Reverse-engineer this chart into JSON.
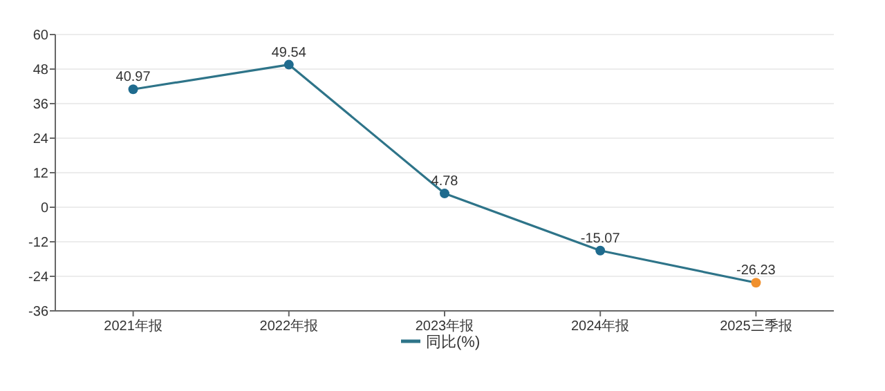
{
  "chart_data": {
    "type": "line",
    "categories": [
      "2021年报",
      "2022年报",
      "2023年报",
      "2024年报",
      "2025三季报"
    ],
    "series": [
      {
        "name": "同比(%)",
        "color": "#2e7489",
        "colors": [
          "#1f6b8e",
          "#1f6b8e",
          "#1f6b8e",
          "#1f6b8e",
          "#f0902e"
        ],
        "values": [
          40.97,
          49.54,
          4.78,
          -15.07,
          -26.23
        ]
      }
    ],
    "ylim": [
      -36,
      60
    ],
    "yticks": [
      -36,
      -24,
      -12,
      0,
      12,
      24,
      36,
      48,
      60
    ],
    "grid": "y",
    "legend": "bottom",
    "marker": "circle",
    "line_style": "solid",
    "data_labels": true
  }
}
